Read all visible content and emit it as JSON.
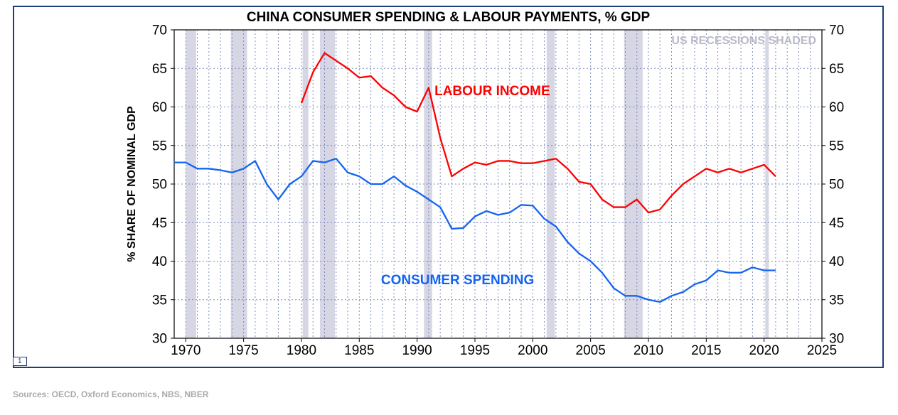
{
  "title": "CHINA CONSUMER SPENDING & LABOUR PAYMENTS, % GDP",
  "title_fontsize": 19,
  "title_color": "#000000",
  "y_axis_label": "% SHARE OF NOMINAL GDP",
  "y_axis_label_fontsize": 16,
  "y_axis_label_color": "#000000",
  "x_range": [
    1969,
    2025
  ],
  "y_range": [
    30,
    70
  ],
  "x_ticks": [
    1970,
    1975,
    1980,
    1985,
    1990,
    1995,
    2000,
    2005,
    2010,
    2015,
    2020,
    2025
  ],
  "y_ticks": [
    30,
    35,
    40,
    45,
    50,
    55,
    60,
    65,
    70
  ],
  "tick_label_fontsize": 19,
  "tick_label_color": "#000000",
  "grid_color": "#7b8bbd",
  "grid_dash": "2 3",
  "grid_width": 1,
  "plot_border_color": "#000000",
  "outer_border_color": "#1f3d7a",
  "background_color": "#ffffff",
  "recession_color": "#d6d6e5",
  "recession_label": "US RECESSIONS SHADED",
  "recession_label_color": "#b9b9c8",
  "recession_label_fontsize": 16,
  "recession_bands": [
    [
      1970.0,
      1970.9
    ],
    [
      1973.9,
      1975.3
    ],
    [
      1980.1,
      1980.6
    ],
    [
      1981.6,
      1982.9
    ],
    [
      1990.6,
      1991.3
    ],
    [
      2001.2,
      2001.9
    ],
    [
      2007.9,
      2009.5
    ],
    [
      2020.1,
      2020.4
    ]
  ],
  "series": {
    "labour_income": {
      "label": "LABOUR INCOME",
      "label_x": 1996.5,
      "label_y": 61.5,
      "color": "#ff0000",
      "line_width": 2.3,
      "label_fontsize": 19,
      "data": [
        [
          1980,
          60.5
        ],
        [
          1981,
          64.5
        ],
        [
          1982,
          67.0
        ],
        [
          1983,
          66.0
        ],
        [
          1984,
          65.0
        ],
        [
          1985,
          63.8
        ],
        [
          1986,
          64.0
        ],
        [
          1987,
          62.5
        ],
        [
          1988,
          61.5
        ],
        [
          1989,
          60.0
        ],
        [
          1990,
          59.4
        ],
        [
          1991,
          62.5
        ],
        [
          1992,
          56.0
        ],
        [
          1993,
          51.0
        ],
        [
          1994,
          52.0
        ],
        [
          1995,
          52.8
        ],
        [
          1996,
          52.5
        ],
        [
          1997,
          53.0
        ],
        [
          1998,
          53.0
        ],
        [
          1999,
          52.7
        ],
        [
          2000,
          52.7
        ],
        [
          2001,
          53.0
        ],
        [
          2002,
          53.3
        ],
        [
          2003,
          52.0
        ],
        [
          2004,
          50.3
        ],
        [
          2005,
          50.0
        ],
        [
          2006,
          48.0
        ],
        [
          2007,
          47.0
        ],
        [
          2008,
          47.0
        ],
        [
          2009,
          48.0
        ],
        [
          2010,
          46.3
        ],
        [
          2011,
          46.7
        ],
        [
          2012,
          48.5
        ],
        [
          2013,
          50.0
        ],
        [
          2014,
          51.0
        ],
        [
          2015,
          52.0
        ],
        [
          2016,
          51.5
        ],
        [
          2017,
          52.0
        ],
        [
          2018,
          51.5
        ],
        [
          2019,
          52.0
        ],
        [
          2020,
          52.5
        ],
        [
          2021,
          51.0
        ]
      ]
    },
    "consumer_spending": {
      "label": "CONSUMER SPENDING",
      "label_x": 1993.5,
      "label_y": 37.0,
      "color": "#1464f0",
      "line_width": 2.3,
      "label_fontsize": 19,
      "data": [
        [
          1969,
          52.8
        ],
        [
          1970,
          52.8
        ],
        [
          1971,
          52.0
        ],
        [
          1972,
          52.0
        ],
        [
          1973,
          51.8
        ],
        [
          1974,
          51.5
        ],
        [
          1975,
          52.0
        ],
        [
          1976,
          53.0
        ],
        [
          1977,
          50.0
        ],
        [
          1978,
          48.0
        ],
        [
          1979,
          50.0
        ],
        [
          1980,
          51.0
        ],
        [
          1981,
          53.0
        ],
        [
          1982,
          52.8
        ],
        [
          1983,
          53.3
        ],
        [
          1984,
          51.5
        ],
        [
          1985,
          51.0
        ],
        [
          1986,
          50.0
        ],
        [
          1987,
          50.0
        ],
        [
          1988,
          51.0
        ],
        [
          1989,
          49.8
        ],
        [
          1990,
          49.0
        ],
        [
          1991,
          48.0
        ],
        [
          1992,
          47.0
        ],
        [
          1993,
          44.2
        ],
        [
          1994,
          44.3
        ],
        [
          1995,
          45.8
        ],
        [
          1996,
          46.5
        ],
        [
          1997,
          46.0
        ],
        [
          1998,
          46.3
        ],
        [
          1999,
          47.3
        ],
        [
          2000,
          47.2
        ],
        [
          2001,
          45.5
        ],
        [
          2002,
          44.5
        ],
        [
          2003,
          42.5
        ],
        [
          2004,
          41.0
        ],
        [
          2005,
          40.0
        ],
        [
          2006,
          38.5
        ],
        [
          2007,
          36.5
        ],
        [
          2008,
          35.5
        ],
        [
          2009,
          35.5
        ],
        [
          2010,
          35.0
        ],
        [
          2011,
          34.7
        ],
        [
          2012,
          35.5
        ],
        [
          2013,
          36.0
        ],
        [
          2014,
          37.0
        ],
        [
          2015,
          37.5
        ],
        [
          2016,
          38.8
        ],
        [
          2017,
          38.5
        ],
        [
          2018,
          38.5
        ],
        [
          2019,
          39.2
        ],
        [
          2020,
          38.8
        ],
        [
          2021,
          38.8
        ]
      ]
    }
  },
  "page_number": "1",
  "sources_text": "Sources: OECD, Oxford Economics, NBS, NBER"
}
